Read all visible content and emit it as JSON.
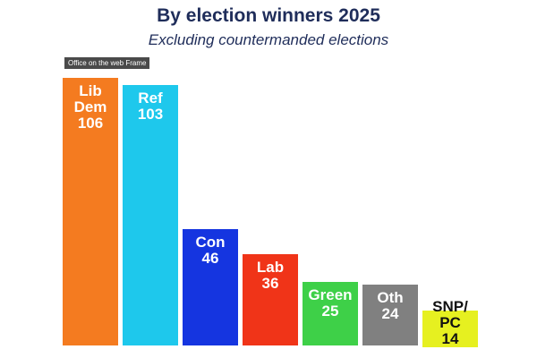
{
  "chart_data": {
    "type": "bar",
    "title": "By election winners 2025",
    "subtitle": "Excluding countermanded elections",
    "annotation": "Office on the web Frame",
    "categories": [
      "Lib Dem",
      "Ref",
      "Con",
      "Lab",
      "Green",
      "Oth",
      "SNP/PC"
    ],
    "values": [
      106,
      103,
      46,
      36,
      25,
      24,
      14
    ],
    "colors": [
      "#f47b20",
      "#1ec8ec",
      "#1535e0",
      "#f03418",
      "#3ed048",
      "#808080",
      "#e6f020"
    ]
  }
}
